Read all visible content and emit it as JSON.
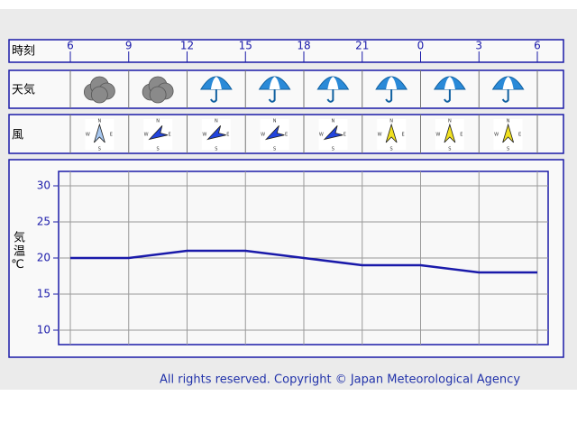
{
  "chart_data": {
    "type": "line",
    "row_labels": {
      "time": "時刻",
      "weather": "天気",
      "wind": "風"
    },
    "compass": [
      "N",
      "E",
      "S",
      "W"
    ],
    "categories": [
      "6",
      "9",
      "12",
      "15",
      "18",
      "21",
      "0",
      "3",
      "6"
    ],
    "values": [
      20,
      20,
      21,
      21,
      20,
      19,
      19,
      18,
      18
    ],
    "color": "#1a1aaa",
    "y_label": "気温℃",
    "ylim": [
      8,
      32
    ],
    "yticks": [
      10,
      15,
      20,
      25,
      30
    ],
    "grid": true
  },
  "footer": "All rights reserved. Copyright © Japan Meteorological Agency"
}
